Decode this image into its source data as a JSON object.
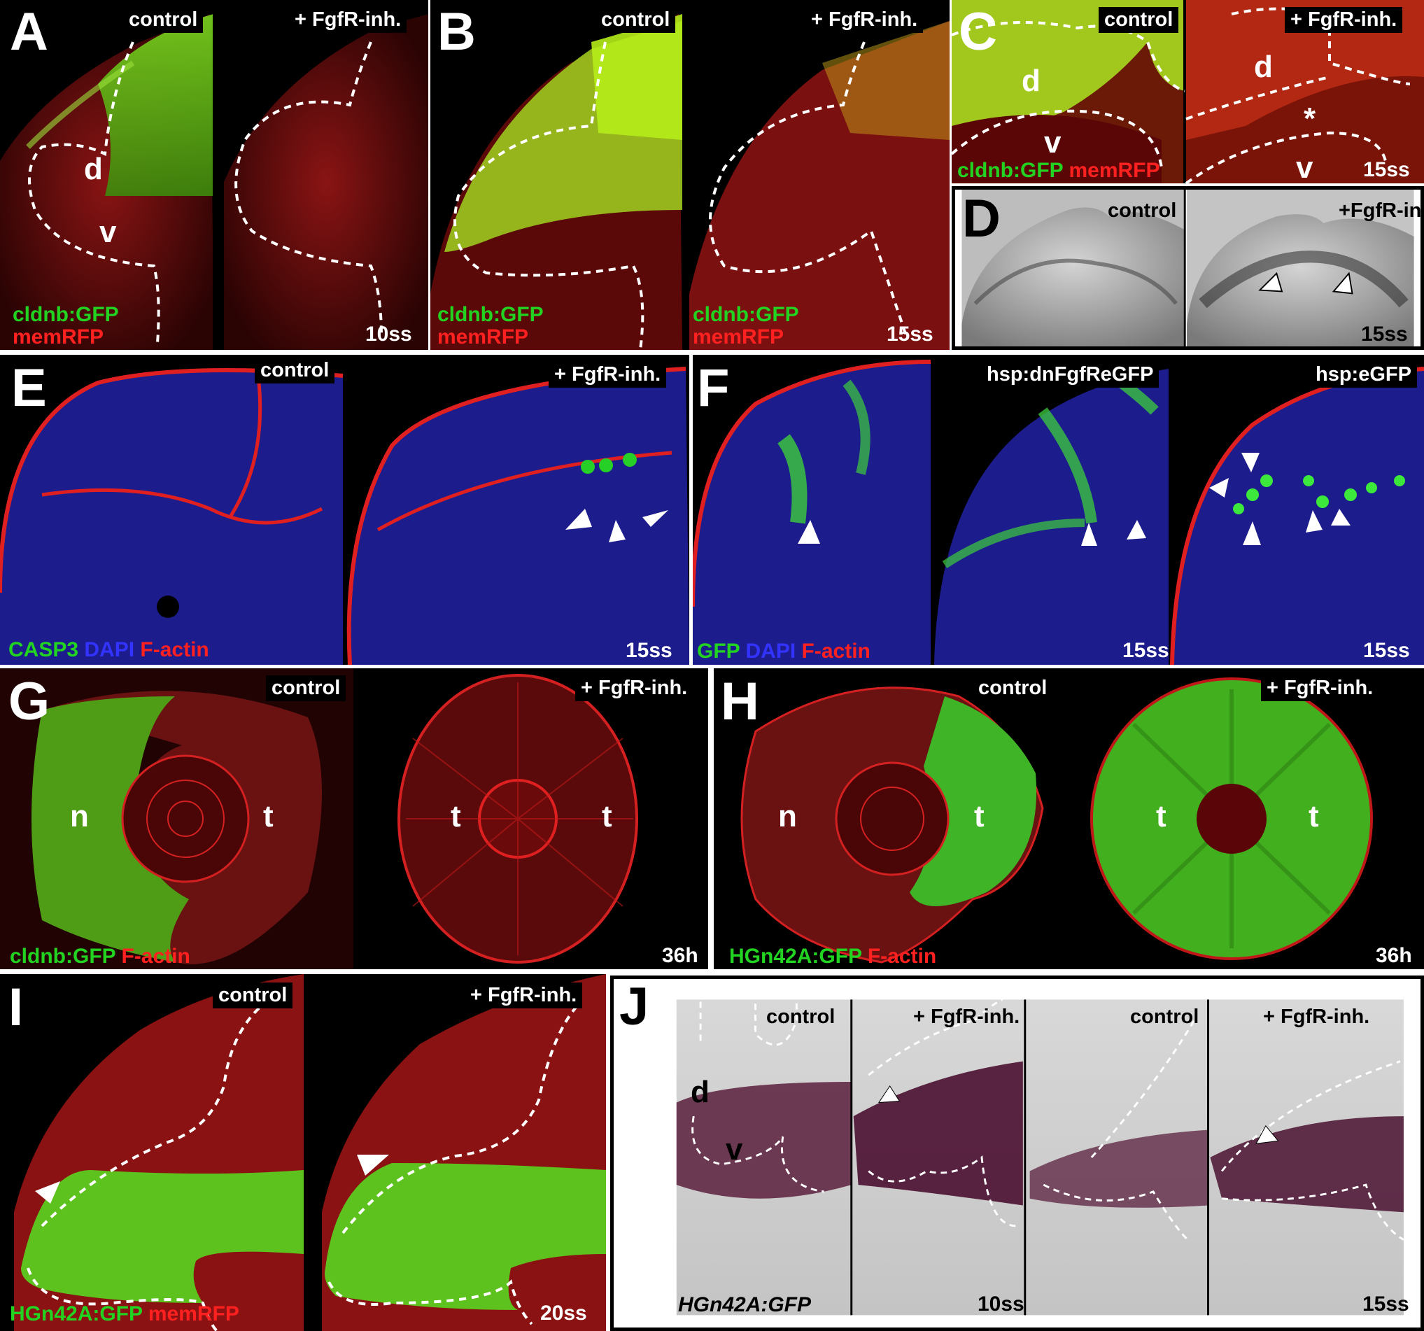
{
  "panels": {
    "A": {
      "letter": "A",
      "tags": [
        "control",
        "+ FgfR-inh."
      ],
      "regions": [
        "d",
        "v"
      ],
      "legend": [
        "cldnb:GFP",
        "memRFP"
      ],
      "stage": "10ss"
    },
    "B": {
      "letter": "B",
      "tags": [
        "control",
        "+ FgfR-inh."
      ],
      "legend": [
        "cldnb:GFP",
        "memRFP"
      ],
      "stage": "15ss"
    },
    "C": {
      "letter": "C",
      "tags": [
        "control",
        "+ FgfR-inh."
      ],
      "regions": [
        "d",
        "v",
        "d",
        "*",
        "v"
      ],
      "legend": [
        "cldnb:GFP",
        "memRFP"
      ],
      "stage": "15ss"
    },
    "D": {
      "letter": "D",
      "tags": [
        "control",
        "+FgfR-inh."
      ],
      "stage": "15ss"
    },
    "E": {
      "letter": "E",
      "tags": [
        "control",
        "+ FgfR-inh."
      ],
      "legend": [
        "CASP3",
        "DAPI",
        "F-actin"
      ],
      "stage": "15ss"
    },
    "F": {
      "letter": "F",
      "tags": [
        "hsp:dnFgfReGFP",
        "hsp:eGFP"
      ],
      "legend": [
        "GFP",
        "DAPI",
        "F-actin"
      ],
      "stages": [
        "15ss",
        "15ss"
      ]
    },
    "G": {
      "letter": "G",
      "tags": [
        "control",
        "+ FgfR-inh."
      ],
      "regions": [
        "n",
        "t",
        "t",
        "t"
      ],
      "legend": [
        "cldnb:GFP",
        "F-actin"
      ],
      "stage": "36h"
    },
    "H": {
      "letter": "H",
      "tags": [
        "control",
        "+ FgfR-inh."
      ],
      "regions": [
        "n",
        "t",
        "t",
        "t"
      ],
      "legend": [
        "HGn42A:GFP",
        "F-actin"
      ],
      "stage": "36h"
    },
    "I": {
      "letter": "I",
      "tags": [
        "control",
        "+ FgfR-inh."
      ],
      "legend": [
        "HGn42A:GFP",
        "memRFP"
      ],
      "stage": "20ss"
    },
    "J": {
      "letter": "J",
      "tags": [
        "control",
        "+ FgfR-inh.",
        "control",
        "+ FgfR-inh."
      ],
      "regions": [
        "d",
        "v"
      ],
      "legend": [
        "HGn42A:GFP"
      ],
      "stages": [
        "10ss",
        "15ss"
      ]
    }
  },
  "colors": {
    "gfp": "#22d322",
    "rfp": "#ff2020",
    "dapi": "#3333ff",
    "tissue_red": "#7a0c0c",
    "ish_purple": "#5a1f3c"
  }
}
